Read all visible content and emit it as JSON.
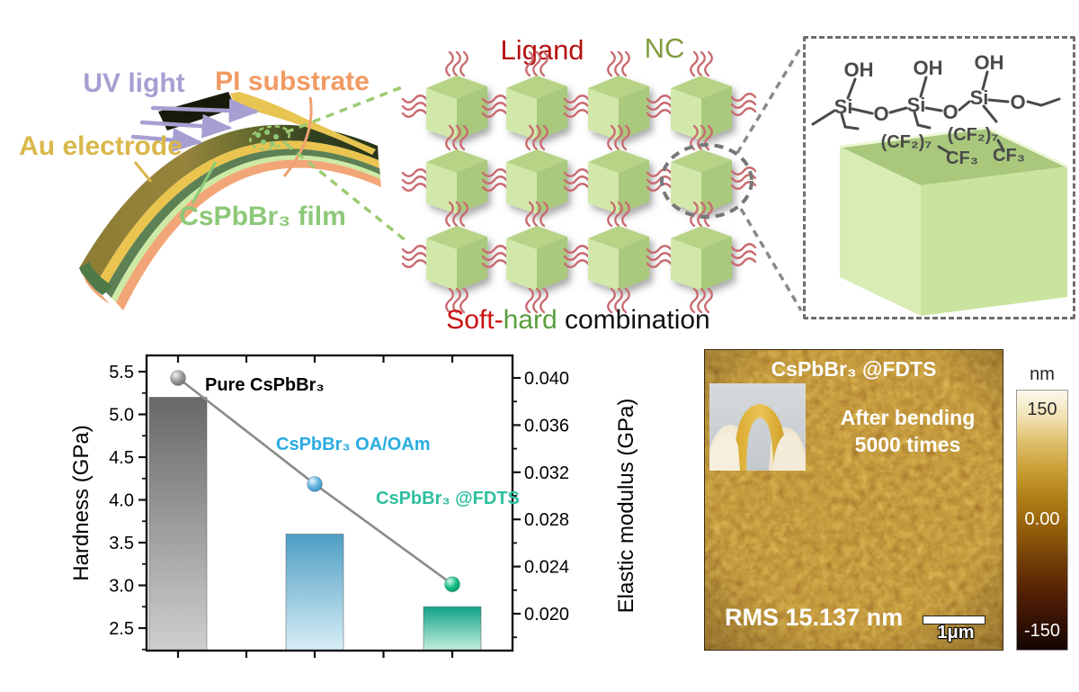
{
  "device": {
    "uv_label": "UV light",
    "pi_label": "PI substrate",
    "au_label": "Au electrode",
    "film_label": "CsPbBr₃ film",
    "colors": {
      "uv": "#a79fd2",
      "pi": "#f09a62",
      "au": "#d9b84b",
      "film": "#8cc878"
    }
  },
  "nc_panel": {
    "ligand_label": "Ligand",
    "nc_label": "NC",
    "caption_soft": "Soft-",
    "caption_hard": "hard",
    "caption_rest": " combination",
    "colors": {
      "ligand": "#b51212",
      "nc": "#7f9c3f",
      "soft": "#cc1111",
      "hard": "#5a9e3c"
    }
  },
  "fdts_panel": {
    "oh": [
      "OH",
      "OH",
      "OH"
    ],
    "si": [
      "Si",
      "Si",
      "Si"
    ],
    "o": [
      "O",
      "O",
      "O"
    ],
    "cf2": [
      "(CF₂)₇",
      "(CF₂)₇"
    ],
    "cf3": [
      "CF₃",
      "CF₃"
    ]
  },
  "chart_data": {
    "type": "bar",
    "categories": [
      "Pure CsPbBr₃",
      "CsPbBr₃ OA/OAm",
      "CsPbBr₃ @FDTS"
    ],
    "series": [
      {
        "name": "Hardness",
        "type": "bar",
        "axis": "left",
        "values": [
          5.2,
          3.6,
          2.75
        ]
      },
      {
        "name": "Elastic modulus",
        "type": "line",
        "axis": "right",
        "values": [
          0.04,
          0.031,
          0.0225
        ]
      }
    ],
    "ylabel_left": "Hardness  (GPa)",
    "ylabel_right": "Elastic modulus (GPa)",
    "yticks_left": [
      2.5,
      3.0,
      3.5,
      4.0,
      4.5,
      5.0,
      5.5
    ],
    "yticks_right": [
      0.02,
      0.024,
      0.028,
      0.032,
      0.036,
      0.04
    ],
    "ylim_left": [
      2.24,
      5.69
    ],
    "ylim_right": [
      0.0169,
      0.0419
    ],
    "grid": false,
    "legend_position": "none",
    "annotations": [
      {
        "text": "Pure CsPbBr₃",
        "color": "#000000"
      },
      {
        "text": "CsPbBr₃ OA/OAm",
        "color": "#29abe2"
      },
      {
        "text": "CsPbBr₃ @FDTS",
        "color": "#2dbf9e"
      }
    ],
    "bar_gradients": [
      [
        "#686868",
        "#cfcfcf"
      ],
      [
        "#4e9ec4",
        "#d8eef6"
      ],
      [
        "#12a287",
        "#c6f0de"
      ]
    ],
    "line_color": "#8a8a8a"
  },
  "afm": {
    "title": "CsPbBr₃ @FDTS",
    "note_line1": "After bending",
    "note_line2": "5000 times",
    "rms_label": "RMS 15.137 nm",
    "scalebar_label": "1μm",
    "colorbar": {
      "unit": "nm",
      "max": "150",
      "mid": "0.00",
      "min": "-150"
    }
  }
}
